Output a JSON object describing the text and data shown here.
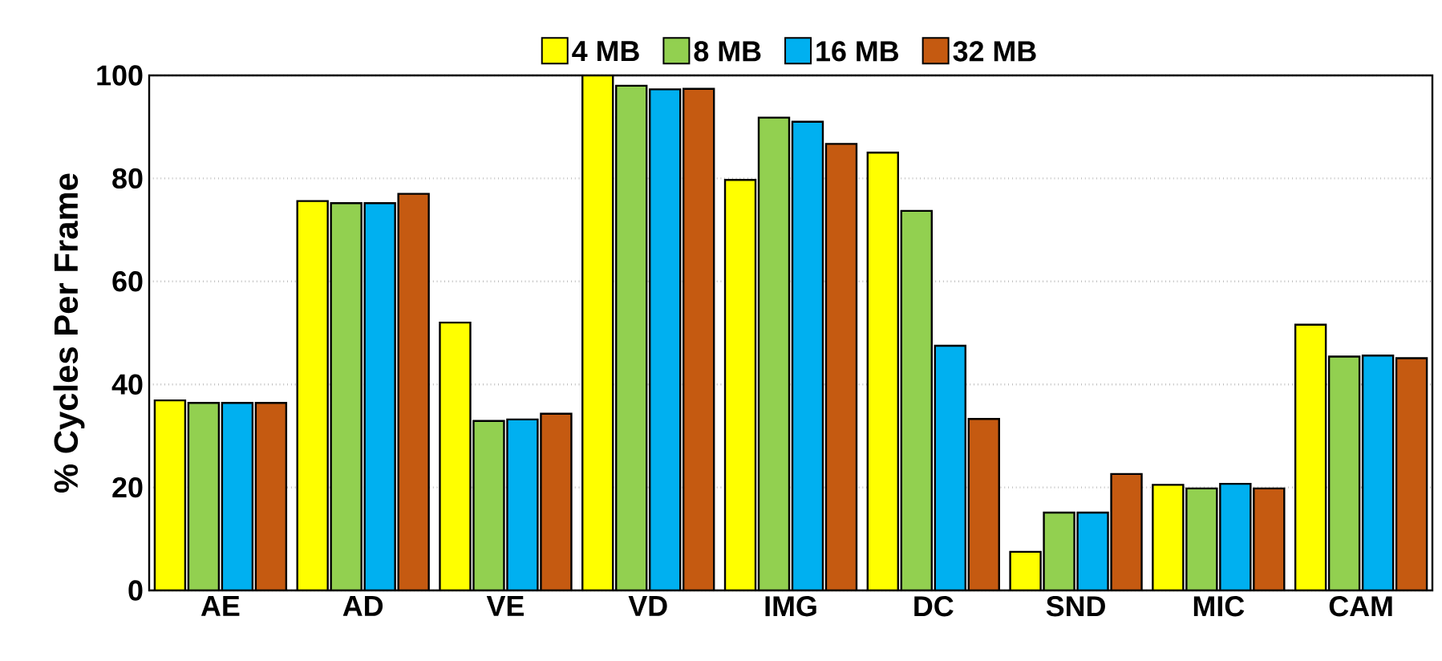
{
  "chart_data": {
    "type": "bar",
    "ylabel": "% Cycles Per Frame",
    "categories": [
      "AE",
      "AD",
      "VE",
      "VD",
      "IMG",
      "DC",
      "SND",
      "MIC",
      "CAM"
    ],
    "series": [
      {
        "name": "4 MB",
        "color": "#ffff00",
        "values": [
          36.9,
          75.6,
          52.0,
          100,
          79.7,
          85.0,
          7.5,
          20.5,
          51.6
        ]
      },
      {
        "name": "8 MB",
        "color": "#92d050",
        "values": [
          36.4,
          75.2,
          32.9,
          98.0,
          91.8,
          73.7,
          15.1,
          19.8,
          45.4
        ]
      },
      {
        "name": "16 MB",
        "color": "#00b0f0",
        "values": [
          36.4,
          75.2,
          33.2,
          97.3,
          91.0,
          47.5,
          15.1,
          20.7,
          45.6
        ]
      },
      {
        "name": "32 MB",
        "color": "#c55a11",
        "values": [
          36.4,
          77.0,
          34.3,
          97.4,
          86.7,
          33.3,
          22.6,
          19.8,
          45.1
        ]
      }
    ],
    "ylim": [
      0,
      100
    ],
    "yticks": [
      0,
      20,
      40,
      60,
      80,
      100
    ],
    "grid": "y",
    "legend": "top"
  }
}
